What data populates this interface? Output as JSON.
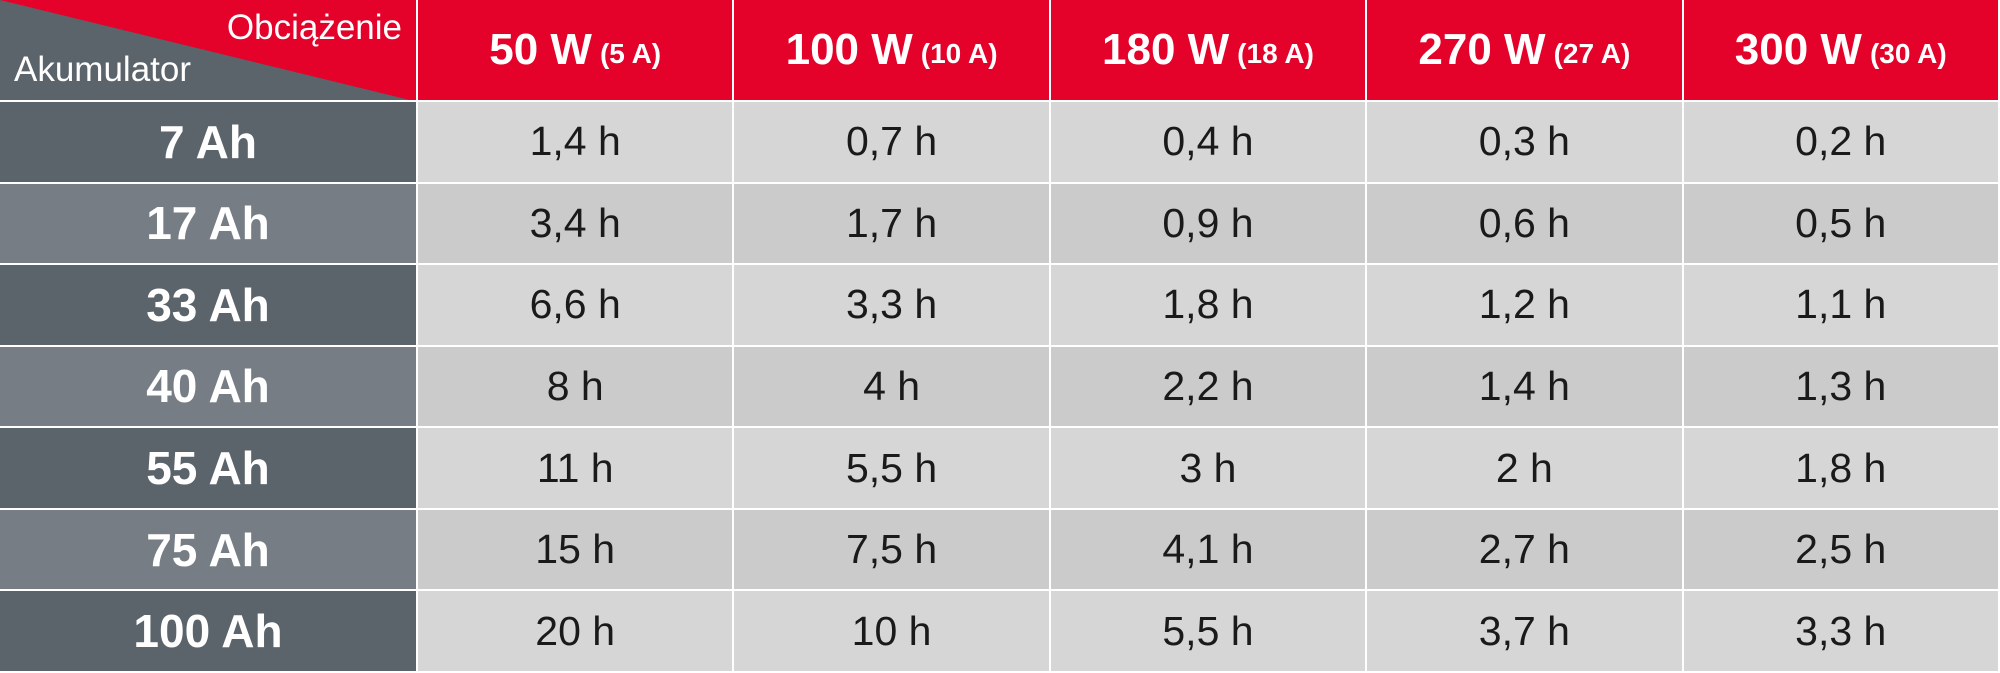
{
  "header": {
    "corner_top": "Obciążenie",
    "corner_bottom": "Akumulator",
    "columns": [
      {
        "power": "50 W",
        "current": "(5 A)"
      },
      {
        "power": "100 W",
        "current": "(10 A)"
      },
      {
        "power": "180 W",
        "current": "(18 A)"
      },
      {
        "power": "270 W",
        "current": "(27 A)"
      },
      {
        "power": "300 W",
        "current": "(30 A)"
      }
    ]
  },
  "rows": [
    {
      "label": "7 Ah",
      "values": [
        "1,4 h",
        "0,7 h",
        "0,4 h",
        "0,3 h",
        "0,2 h"
      ]
    },
    {
      "label": "17 Ah",
      "values": [
        "3,4 h",
        "1,7 h",
        "0,9 h",
        "0,6 h",
        "0,5 h"
      ]
    },
    {
      "label": "33 Ah",
      "values": [
        "6,6 h",
        "3,3 h",
        "1,8 h",
        "1,2 h",
        "1,1 h"
      ]
    },
    {
      "label": "40 Ah",
      "values": [
        "8 h",
        "4 h",
        "2,2 h",
        "1,4 h",
        "1,3 h"
      ]
    },
    {
      "label": "55 Ah",
      "values": [
        "11 h",
        "5,5 h",
        "3 h",
        "2 h",
        "1,8 h"
      ]
    },
    {
      "label": "75 Ah",
      "values": [
        "15 h",
        "7,5 h",
        "4,1 h",
        "2,7 h",
        "2,5 h"
      ]
    },
    {
      "label": "100 Ah",
      "values": [
        "20 h",
        "10 h",
        "5,5 h",
        "3,7 h",
        "3,3 h"
      ]
    }
  ]
}
